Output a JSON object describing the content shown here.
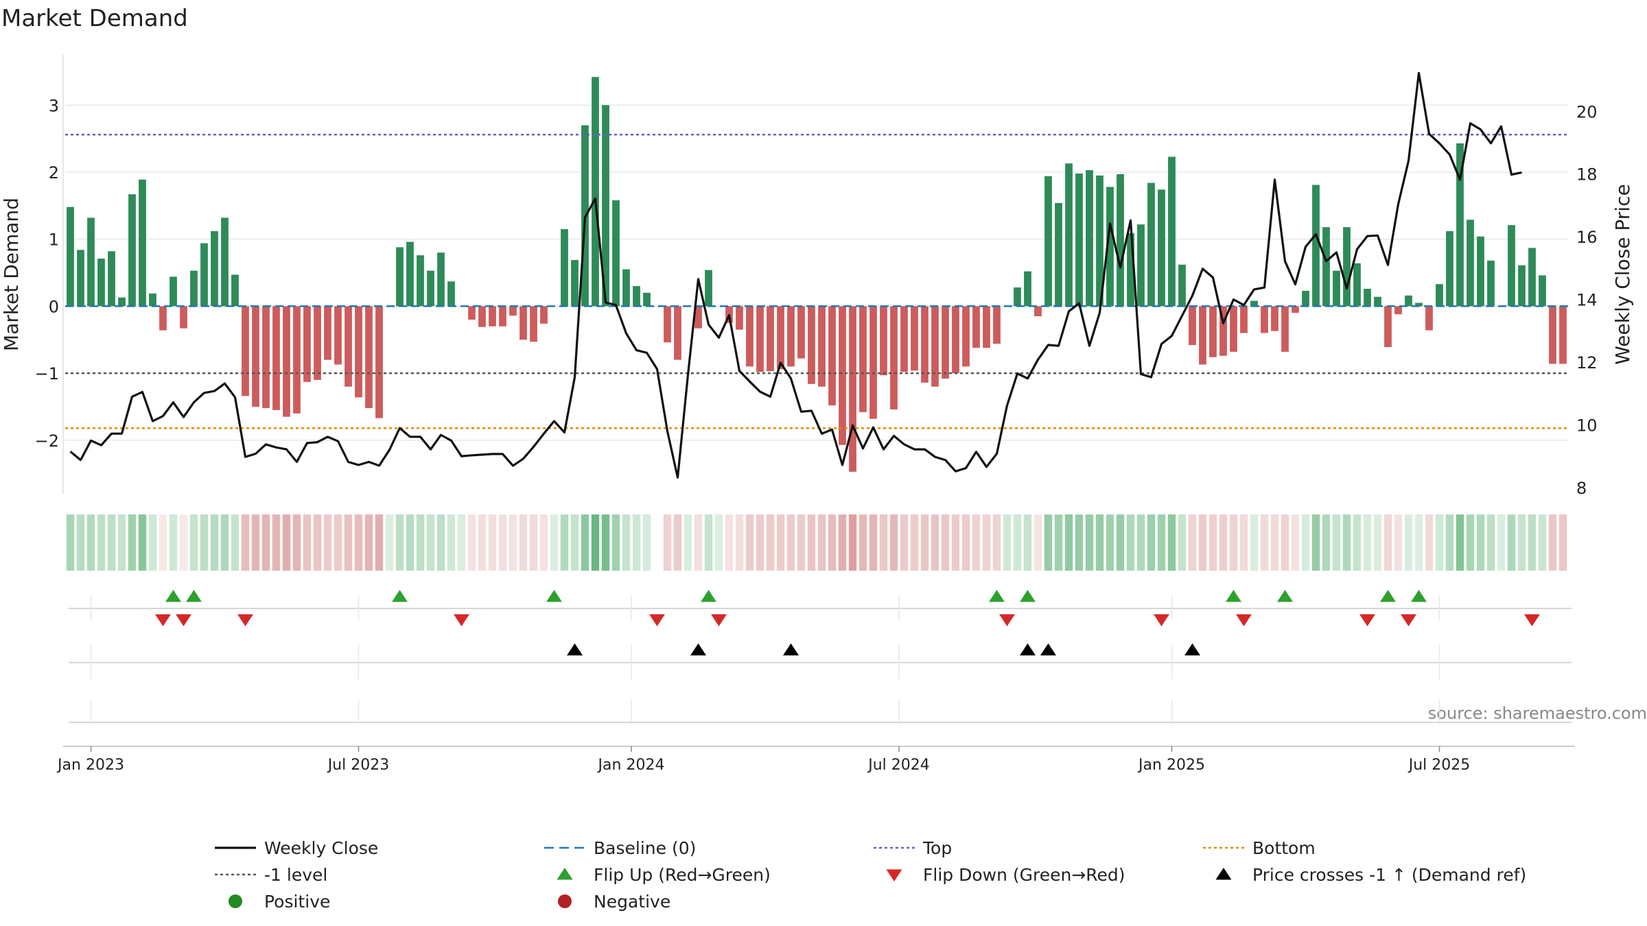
{
  "chart_data": {
    "type": "bar",
    "title": "Market Demand",
    "ylabel": "Market Demand",
    "y2label": "Weekly Close Price",
    "source": "source: sharemaestro.com",
    "ylim": [
      -2.8,
      3.75
    ],
    "y2lim": [
      7.8,
      21.8
    ],
    "yticks": [
      {
        "v": 3,
        "label": "3"
      },
      {
        "v": 2,
        "label": "2"
      },
      {
        "v": 1,
        "label": "1"
      },
      {
        "v": 0,
        "label": "0"
      },
      {
        "v": -1,
        "label": "−1"
      },
      {
        "v": -2,
        "label": "−2"
      }
    ],
    "y2ticks": [
      {
        "v": 20,
        "label": "20"
      },
      {
        "v": 18,
        "label": "18"
      },
      {
        "v": 16,
        "label": "16"
      },
      {
        "v": 14,
        "label": "14"
      },
      {
        "v": 12,
        "label": "12"
      },
      {
        "v": 10,
        "label": "10"
      },
      {
        "v": 8,
        "label": "8"
      }
    ],
    "xticks": [
      {
        "i": 2,
        "label": "Jan 2023"
      },
      {
        "i": 28,
        "label": "Jul 2023"
      },
      {
        "i": 54.5,
        "label": "Jan 2024"
      },
      {
        "i": 80.5,
        "label": "Jul 2024"
      },
      {
        "i": 107,
        "label": "Jan 2025"
      },
      {
        "i": 133,
        "label": "Jul 2025"
      }
    ],
    "reference_lines": {
      "top": 2.56,
      "minus_one": -1.0,
      "bottom": -1.82,
      "baseline": 0
    },
    "colors": {
      "positive": "#2e8b57",
      "negative": "#cd5c5c",
      "close": "#111111",
      "top": "#6a5acd",
      "bottom": "#e08a00",
      "baseline": "#1f77b4",
      "minus_one": "#555555",
      "flip_up": "#2ca02c",
      "flip_down": "#d62728",
      "cross": "#000000",
      "dot_pos": "#228b22",
      "dot_neg": "#b22222",
      "strip_pos": "#3fa35c",
      "strip_neg": "#c96b6b",
      "grid": "#dddddd"
    },
    "demand": [
      1.48,
      0.84,
      1.32,
      0.71,
      0.82,
      0.13,
      1.67,
      1.89,
      0.19,
      -0.36,
      0.44,
      -0.33,
      0.53,
      0.94,
      1.12,
      1.32,
      0.47,
      -1.34,
      -1.5,
      -1.52,
      -1.55,
      -1.65,
      -1.6,
      -1.13,
      -1.1,
      -0.8,
      -0.87,
      -1.2,
      -1.36,
      -1.52,
      -1.67,
      0,
      0.88,
      0.96,
      0.76,
      0.53,
      0.8,
      0.37,
      0,
      -0.2,
      -0.31,
      -0.3,
      -0.3,
      -0.14,
      -0.5,
      -0.53,
      -0.26,
      0,
      1.15,
      0.69,
      2.7,
      3.42,
      3.0,
      1.58,
      0.55,
      0.3,
      0.2,
      0,
      -0.54,
      -0.8,
      0,
      -0.33,
      0.54,
      0,
      -0.25,
      -0.35,
      -0.9,
      -0.98,
      -0.97,
      -0.94,
      -0.9,
      -0.78,
      -1.16,
      -1.2,
      -1.48,
      -2.07,
      -2.47,
      -1.58,
      -1.68,
      -1.03,
      -1.54,
      -0.98,
      -0.96,
      -1.14,
      -1.2,
      -1.08,
      -1.0,
      -0.9,
      -0.62,
      -0.62,
      -0.56,
      0,
      0.28,
      0.52,
      -0.15,
      1.94,
      1.54,
      2.13,
      1.98,
      2.03,
      1.95,
      1.78,
      1.97,
      1.09,
      1.22,
      1.84,
      1.74,
      2.23,
      0.62,
      -0.58,
      -0.87,
      -0.76,
      -0.74,
      -0.68,
      -0.4,
      0.08,
      -0.4,
      -0.37,
      -0.68,
      -0.1,
      0.23,
      1.81,
      1.18,
      0.53,
      1.18,
      0.64,
      0.26,
      0.14,
      -0.61,
      -0.12,
      0.16,
      0.05,
      -0.36,
      0.33,
      1.12,
      2.43,
      1.29,
      1.04,
      0.68,
      0,
      1.21,
      0.61,
      0.87,
      0.46,
      -0.86,
      -0.86
    ],
    "close": [
      9.15,
      8.88,
      9.5,
      9.35,
      9.72,
      9.72,
      10.9,
      11.05,
      10.12,
      10.28,
      10.72,
      10.25,
      10.72,
      11.02,
      11.08,
      11.32,
      10.88,
      8.98,
      9.08,
      9.38,
      9.28,
      9.22,
      8.82,
      9.42,
      9.45,
      9.62,
      9.48,
      8.82,
      8.72,
      8.82,
      8.7,
      9.2,
      9.9,
      9.62,
      9.62,
      9.22,
      9.68,
      9.5,
      9.0,
      9.03,
      9.05,
      9.07,
      9.07,
      8.7,
      8.92,
      9.3,
      9.72,
      10.12,
      9.76,
      11.52,
      16.62,
      17.22,
      13.9,
      13.82,
      12.92,
      12.38,
      12.3,
      11.78,
      9.8,
      8.32,
      11.6,
      14.65,
      13.2,
      12.78,
      13.5,
      11.72,
      11.38,
      11.06,
      10.9,
      11.98,
      11.48,
      10.42,
      10.45,
      9.72,
      9.85,
      8.72,
      9.98,
      9.25,
      9.92,
      9.22,
      9.65,
      9.38,
      9.22,
      9.22,
      8.98,
      8.88,
      8.52,
      8.62,
      9.14,
      8.66,
      9.08,
      10.62,
      11.64,
      11.48,
      12.08,
      12.55,
      12.52,
      13.62,
      13.88,
      12.52,
      13.58,
      16.42,
      15.02,
      16.52,
      11.62,
      11.52,
      12.58,
      12.84,
      13.48,
      14.12,
      14.98,
      14.7,
      13.24,
      14.0,
      13.82,
      14.32,
      14.38,
      17.82,
      15.22,
      14.48,
      15.68,
      16.08,
      15.22,
      15.5,
      14.35,
      15.6,
      16.02,
      16.04,
      15.1,
      17.04,
      18.42,
      21.22,
      19.28,
      18.98,
      18.62,
      17.82,
      19.62,
      19.42,
      18.98,
      19.52,
      17.98,
      18.05
    ],
    "strip_intensity": [
      0.45,
      0.38,
      0.4,
      0.35,
      0.35,
      0.3,
      0.5,
      0.62,
      0.25,
      0.15,
      0.25,
      0.15,
      0.3,
      0.35,
      0.38,
      0.42,
      0.3,
      0.45,
      0.5,
      0.5,
      0.5,
      0.55,
      0.5,
      0.4,
      0.4,
      0.35,
      0.35,
      0.42,
      0.45,
      0.5,
      0.55,
      0.18,
      0.35,
      0.38,
      0.35,
      0.3,
      0.35,
      0.25,
      0.2,
      0.2,
      0.22,
      0.22,
      0.22,
      0.2,
      0.25,
      0.25,
      0.2,
      0.18,
      0.4,
      0.3,
      0.6,
      0.78,
      0.7,
      0.5,
      0.3,
      0.25,
      0.22,
      0,
      0.3,
      0.35,
      0.2,
      0.22,
      0.3,
      0.18,
      0.2,
      0.22,
      0.35,
      0.35,
      0.35,
      0.35,
      0.35,
      0.35,
      0.4,
      0.4,
      0.45,
      0.55,
      0.65,
      0.48,
      0.5,
      0.38,
      0.48,
      0.35,
      0.35,
      0.38,
      0.4,
      0.38,
      0.35,
      0.35,
      0.3,
      0.3,
      0.3,
      0.25,
      0.25,
      0.3,
      0.18,
      0.55,
      0.5,
      0.58,
      0.55,
      0.55,
      0.55,
      0.5,
      0.55,
      0.42,
      0.42,
      0.52,
      0.5,
      0.6,
      0.3,
      0.3,
      0.35,
      0.32,
      0.32,
      0.3,
      0.25,
      0.2,
      0.25,
      0.25,
      0.3,
      0.2,
      0.22,
      0.55,
      0.42,
      0.3,
      0.42,
      0.3,
      0.22,
      0.2,
      0.28,
      0.2,
      0.2,
      0.18,
      0.25,
      0.25,
      0.4,
      0.65,
      0.45,
      0.42,
      0.35,
      0.2,
      0.42,
      0.3,
      0.35,
      0.28,
      0.38,
      0.38
    ],
    "flip_up": [
      10,
      12,
      32,
      47,
      62,
      90,
      93,
      113,
      118,
      128,
      131
    ],
    "flip_down": [
      9,
      11,
      17,
      38,
      57,
      63,
      91,
      106,
      114,
      126,
      130,
      142
    ],
    "price_cross": [
      49,
      61,
      70,
      93,
      95,
      109
    ],
    "legend": [
      {
        "label": "Weekly Close",
        "kind": "line",
        "color": "#111111"
      },
      {
        "label": "Baseline (0)",
        "kind": "dashed",
        "color": "#1f77b4"
      },
      {
        "label": "Top",
        "kind": "dotted",
        "color": "#6a5acd"
      },
      {
        "label": "Bottom",
        "kind": "dotted",
        "color": "#e08a00"
      },
      {
        "label": "-1 level",
        "kind": "dotted",
        "color": "#555555"
      },
      {
        "label": "Flip Up (Red→Green)",
        "kind": "tri-up",
        "color": "#2ca02c"
      },
      {
        "label": "Flip Down (Green→Red)",
        "kind": "tri-down",
        "color": "#d62728"
      },
      {
        "label": "Price crosses -1 ↑ (Demand ref)",
        "kind": "tri-up",
        "color": "#000000"
      },
      {
        "label": "Positive",
        "kind": "dot",
        "color": "#228b22"
      },
      {
        "label": "Negative",
        "kind": "dot",
        "color": "#b22222"
      }
    ]
  }
}
